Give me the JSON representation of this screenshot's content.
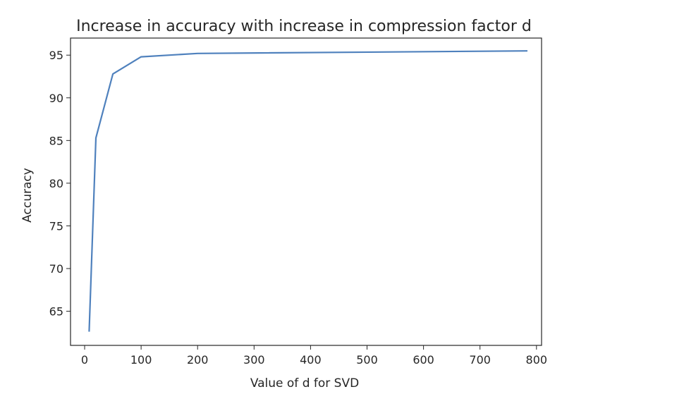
{
  "chart_data": {
    "type": "line",
    "title": "Increase in accuracy with increase in compression factor d",
    "xlabel": "Value of d for SVD",
    "ylabel": "Accuracy",
    "xlim": [
      -25,
      809
    ],
    "ylim": [
      61.0,
      97.0
    ],
    "xticks": [
      0,
      100,
      200,
      300,
      400,
      500,
      600,
      700,
      800
    ],
    "yticks": [
      65,
      70,
      75,
      80,
      85,
      90,
      95
    ],
    "grid": false,
    "series": [
      {
        "color": "#4f81bd",
        "x": [
          8,
          20,
          50,
          100,
          200,
          784
        ],
        "y": [
          62.6,
          85.3,
          92.8,
          94.8,
          95.2,
          95.5
        ]
      }
    ]
  }
}
